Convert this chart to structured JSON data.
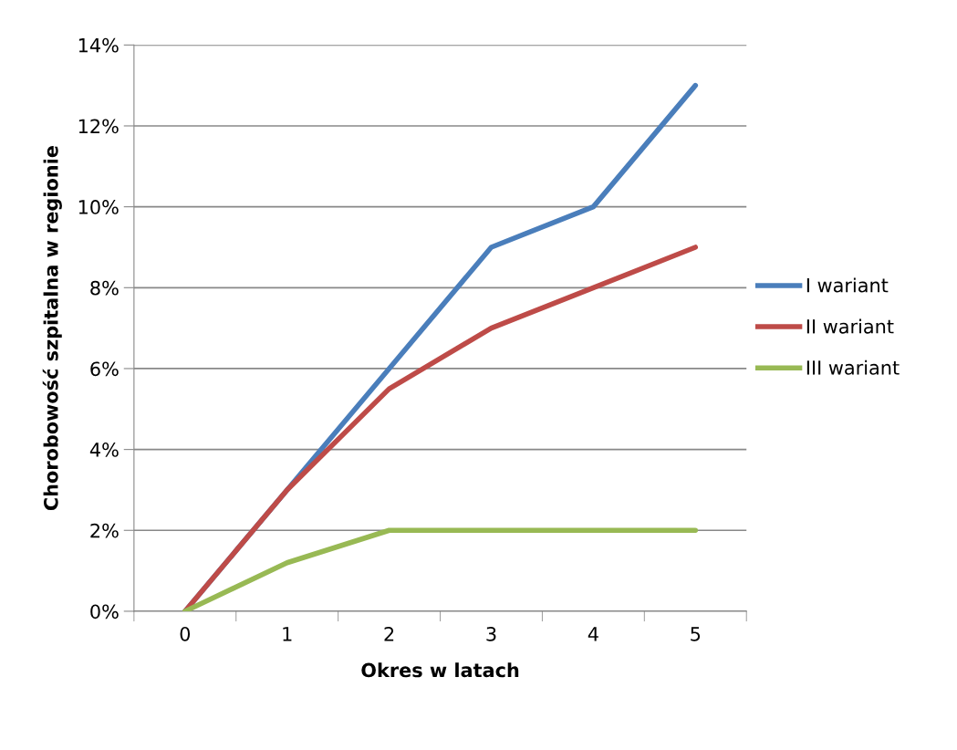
{
  "chart_data": {
    "type": "line",
    "xlabel": "Okres w latach",
    "ylabel": "Chorobowość szpitalna w regionie",
    "categories": [
      "0",
      "1",
      "2",
      "3",
      "4",
      "5"
    ],
    "series": [
      {
        "name": "I wariant",
        "color": "#4a7ebb",
        "values": [
          0,
          3,
          6,
          9,
          10,
          13
        ]
      },
      {
        "name": "II wariant",
        "color": "#be4b48",
        "values": [
          0,
          3,
          5.5,
          7,
          8,
          9
        ]
      },
      {
        "name": "III wariant",
        "color": "#98b954",
        "values": [
          0,
          1.2,
          2,
          2,
          2,
          2
        ]
      }
    ],
    "ylim": [
      0,
      14
    ],
    "yticks": [
      {
        "value": 0,
        "label": "0%"
      },
      {
        "value": 2,
        "label": "2%"
      },
      {
        "value": 4,
        "label": "4%"
      },
      {
        "value": 6,
        "label": "6%"
      },
      {
        "value": 8,
        "label": "8%"
      },
      {
        "value": 10,
        "label": "10%"
      },
      {
        "value": 12,
        "label": "12%"
      },
      {
        "value": 14,
        "label": "14%"
      }
    ],
    "grid": "y",
    "legend": "right",
    "marker": "none",
    "line_style": "solid"
  }
}
